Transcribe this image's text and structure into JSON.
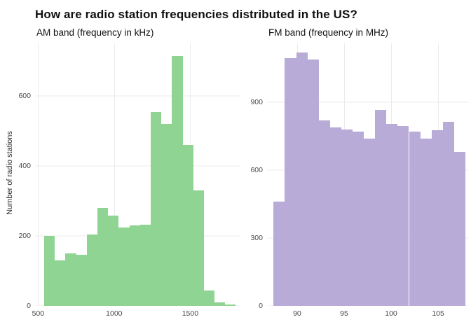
{
  "title": "How are radio station frequencies distributed in the US?",
  "chart_data": [
    {
      "type": "bar",
      "subtype": "histogram",
      "title": "AM band (frequency in kHz)",
      "xlabel": "",
      "ylabel": "Number of radio stations",
      "bin_start": 540,
      "bin_width": 70,
      "values": [
        200,
        130,
        150,
        147,
        205,
        280,
        258,
        225,
        230,
        232,
        555,
        520,
        715,
        460,
        330,
        45,
        10,
        5
      ],
      "xlim": [
        480,
        1830
      ],
      "ylim": [
        0,
        750
      ],
      "xticks": [
        500,
        1000,
        1500
      ],
      "yticks": [
        0,
        200,
        400,
        600
      ],
      "grid": true,
      "bar_color": "#8fd493"
    },
    {
      "type": "bar",
      "subtype": "histogram",
      "title": "FM band (frequency in MHz)",
      "xlabel": "",
      "ylabel": "",
      "bin_start": 87.5,
      "bin_width": 1.2,
      "values": [
        460,
        1095,
        1120,
        1090,
        820,
        790,
        780,
        770,
        740,
        865,
        805,
        795,
        770,
        740,
        775,
        815,
        680
      ],
      "xlim": [
        86.8,
        108.2
      ],
      "ylim": [
        0,
        1160
      ],
      "xticks": [
        90,
        95,
        100,
        105
      ],
      "yticks": [
        0,
        300,
        600,
        900
      ],
      "grid": true,
      "bar_color": "#b9abd8"
    }
  ]
}
